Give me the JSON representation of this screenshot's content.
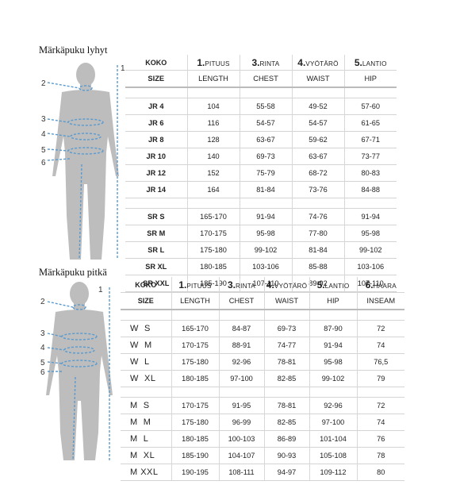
{
  "short": {
    "title": "Märkäpuku lyhyt",
    "markers": [
      "1",
      "2",
      "3",
      "4",
      "5",
      "6"
    ],
    "header1": [
      {
        "num": "",
        "text": "KOKO"
      },
      {
        "num": "1.",
        "text": "PITUUS"
      },
      {
        "num": "3.",
        "text": "RINTA"
      },
      {
        "num": "4.",
        "text": "VYÖTÄRÖ"
      },
      {
        "num": "5.",
        "text": "LANTIO"
      }
    ],
    "header2": [
      "SIZE",
      "LENGTH",
      "CHEST",
      "WAIST",
      "HIP"
    ],
    "junior": [
      [
        "JR 4",
        "104",
        "55-58",
        "49-52",
        "57-60"
      ],
      [
        "JR 6",
        "116",
        "54-57",
        "54-57",
        "61-65"
      ],
      [
        "JR 8",
        "128",
        "63-67",
        "59-62",
        "67-71"
      ],
      [
        "JR 10",
        "140",
        "69-73",
        "63-67",
        "73-77"
      ],
      [
        "JR 12",
        "152",
        "75-79",
        "68-72",
        "80-83"
      ],
      [
        "JR 14",
        "164",
        "81-84",
        "73-76",
        "84-88"
      ]
    ],
    "senior": [
      [
        "SR S",
        "165-170",
        "91-94",
        "74-76",
        "91-94"
      ],
      [
        "SR M",
        "170-175",
        "95-98",
        "77-80",
        "95-98"
      ],
      [
        "SR L",
        "175-180",
        "99-102",
        "81-84",
        "99-102"
      ],
      [
        "SR XL",
        "180-185",
        "103-106",
        "85-88",
        "103-106"
      ],
      [
        "SR XXL",
        "185-190",
        "107-110",
        "89-92",
        "107-110"
      ]
    ]
  },
  "long": {
    "title": "Märkäpuku pitkä",
    "markers": [
      "1",
      "2",
      "3",
      "4",
      "5",
      "6"
    ],
    "header1": [
      {
        "num": "",
        "text": "KOKO"
      },
      {
        "num": "1.",
        "text": "PITUUS"
      },
      {
        "num": "3.",
        "text": "RINTA"
      },
      {
        "num": "4.",
        "text": "VYÖTÄRÖ"
      },
      {
        "num": "5.",
        "text": "LANTIO"
      },
      {
        "num": "6.",
        "text": "HAARA"
      }
    ],
    "header2": [
      "SIZE",
      "LENGTH",
      "CHEST",
      "WAIST",
      "HIP",
      "INSEAM"
    ],
    "women": [
      [
        "W  S",
        "165-170",
        "84-87",
        "69-73",
        "87-90",
        "72"
      ],
      [
        "W  M",
        "170-175",
        "88-91",
        "74-77",
        "91-94",
        "74"
      ],
      [
        "W  L",
        "175-180",
        "92-96",
        "78-81",
        "95-98",
        "76,5"
      ],
      [
        "W  XL",
        "180-185",
        "97-100",
        "82-85",
        "99-102",
        "79"
      ]
    ],
    "men": [
      [
        "M  S",
        "170-175",
        "91-95",
        "78-81",
        "92-96",
        "72"
      ],
      [
        "M  M",
        "175-180",
        "96-99",
        "82-85",
        "97-100",
        "74"
      ],
      [
        "M  L",
        "180-185",
        "100-103",
        "86-89",
        "101-104",
        "76"
      ],
      [
        "M  XL",
        "185-190",
        "104-107",
        "90-93",
        "105-108",
        "78"
      ],
      [
        "M XXL",
        "190-195",
        "108-111",
        "94-97",
        "109-112",
        "80"
      ]
    ]
  },
  "colors": {
    "marker_line": "#5a9bd0",
    "body_fill": "#bdbdbd",
    "text": "#222222"
  }
}
